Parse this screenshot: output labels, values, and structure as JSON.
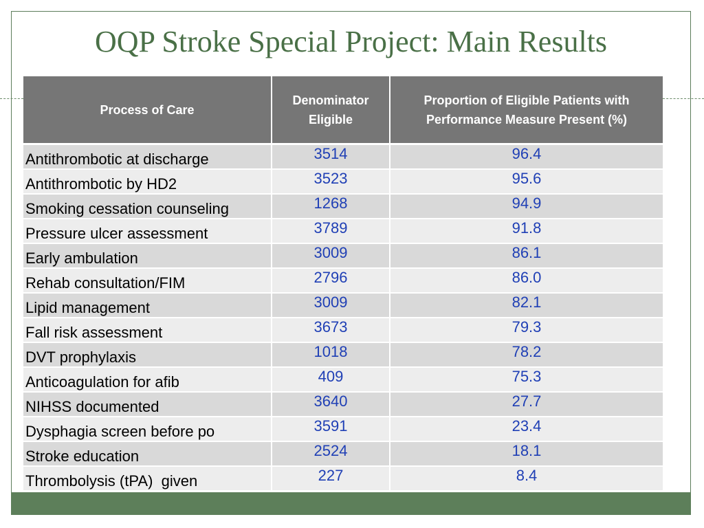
{
  "title": "OQP Stroke Special Project: Main Results",
  "table": {
    "headers": [
      "Process of Care",
      "Denominator Eligible",
      "Proportion of Eligible Patients with Performance Measure Present (%)"
    ],
    "rows": [
      {
        "process": "Antithrombotic at discharge",
        "denominator": "3514",
        "proportion": "96.4"
      },
      {
        "process": "Antithrombotic by HD2",
        "denominator": "3523",
        "proportion": "95.6"
      },
      {
        "process": "Smoking cessation counseling",
        "denominator": "1268",
        "proportion": "94.9"
      },
      {
        "process": "Pressure ulcer assessment",
        "denominator": "3789",
        "proportion": "91.8"
      },
      {
        "process": "Early ambulation",
        "denominator": "3009",
        "proportion": "86.1"
      },
      {
        "process": "Rehab consultation/FIM",
        "denominator": "2796",
        "proportion": "86.0"
      },
      {
        "process": "Lipid management",
        "denominator": "3009",
        "proportion": "82.1"
      },
      {
        "process": "Fall risk assessment",
        "denominator": "3673",
        "proportion": "79.3"
      },
      {
        "process": "DVT prophylaxis",
        "denominator": "1018",
        "proportion": "78.2"
      },
      {
        "process": "Anticoagulation for afib",
        "denominator": "409",
        "proportion": "75.3"
      },
      {
        "process": "NIHSS documented",
        "denominator": "3640",
        "proportion": "27.7"
      },
      {
        "process": "Dysphagia screen before po",
        "denominator": "3591",
        "proportion": "23.4"
      },
      {
        "process": "Stroke education",
        "denominator": "2524",
        "proportion": "18.1"
      },
      {
        "process": "Thrombolysis (tPA)  given",
        "denominator": "227",
        "proportion": "8.4"
      }
    ]
  },
  "colors": {
    "title": "#4a7047",
    "header_bg": "#767676",
    "row_dark": "#d9d9d9",
    "row_light": "#ededed",
    "number_text": "#1f3fb5",
    "footer_bar": "#5d7f5a"
  }
}
